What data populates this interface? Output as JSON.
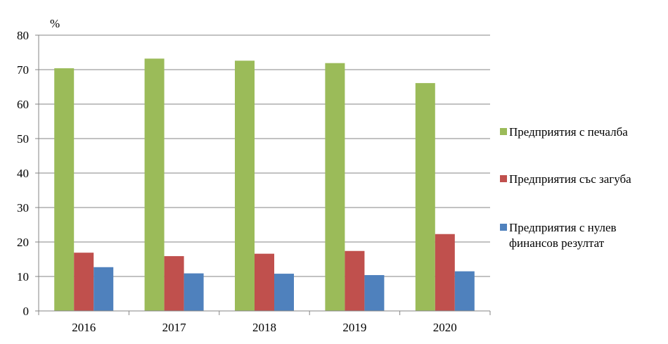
{
  "chart_data": {
    "type": "bar",
    "unit_label": "%",
    "categories": [
      "2016",
      "2017",
      "2018",
      "2019",
      "2020"
    ],
    "series": [
      {
        "name": "Предприятия  с печалба",
        "legend_lines": [
          "Предприятия  с печалба"
        ],
        "color": "#9BBB59",
        "values": [
          70.4,
          73.2,
          72.6,
          71.9,
          66.1
        ]
      },
      {
        "name": "Предприятия  със загуба",
        "legend_lines": [
          "Предприятия  със загуба"
        ],
        "color": "#C0504D",
        "values": [
          16.9,
          15.9,
          16.6,
          17.4,
          22.3
        ]
      },
      {
        "name": "Предприятия  с нулев финансов резултат",
        "legend_lines": [
          "Предприятия  с нулев",
          "финансов резултат"
        ],
        "color": "#4F81BD",
        "values": [
          12.7,
          10.9,
          10.8,
          10.4,
          11.5
        ]
      }
    ],
    "ylim": [
      0,
      80
    ],
    "yticks": [
      0,
      10,
      20,
      30,
      40,
      50,
      60,
      70,
      80
    ],
    "grid": true,
    "legend_position": "right"
  }
}
